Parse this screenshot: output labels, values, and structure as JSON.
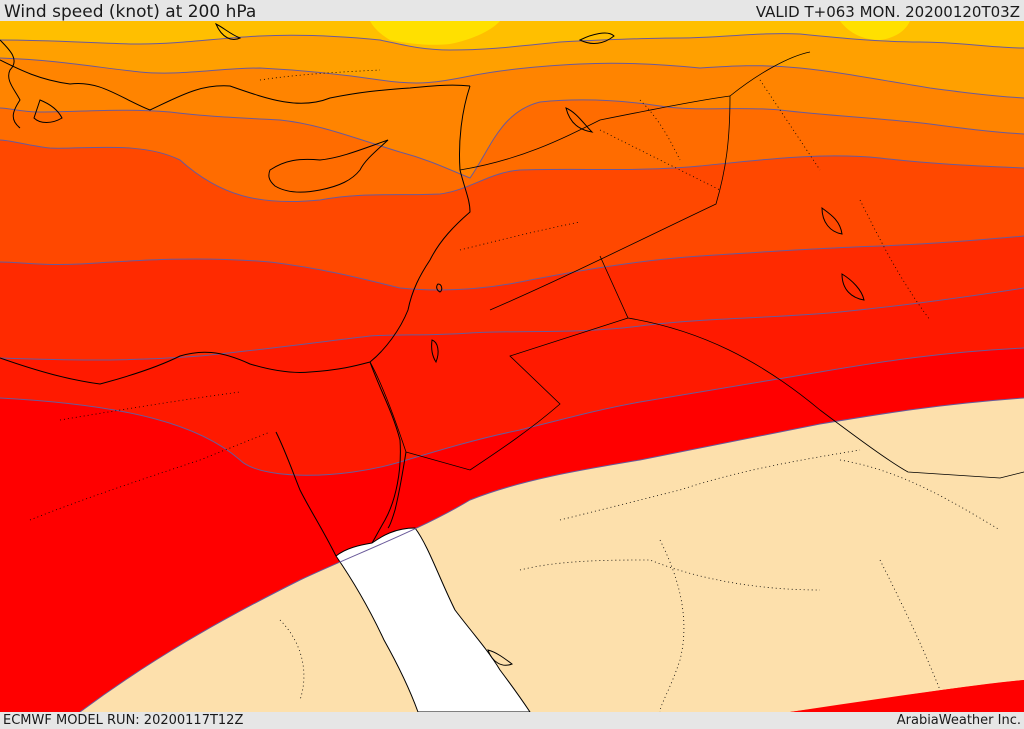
{
  "header": {
    "title": "Wind speed (knot) at 200 hPa",
    "valid_time": "VALID T+063 MON. 20200120T03Z"
  },
  "footer": {
    "model_run": "ECMWF MODEL RUN: 20200117T12Z",
    "credit": "ArabiaWeather Inc."
  },
  "colors": {
    "band_1": "#ffe000",
    "band_2": "#ffbf00",
    "band_3": "#ffa000",
    "band_4": "#ff8400",
    "band_5": "#ff6c00",
    "band_6": "#ff4800",
    "band_7": "#ff2a00",
    "band_8": "#ff1a00",
    "band_9": "#ff0000",
    "calm": "#fde0ac",
    "sea": "#ffffff",
    "coast": "#000000",
    "contour": "#6a5a9a"
  }
}
